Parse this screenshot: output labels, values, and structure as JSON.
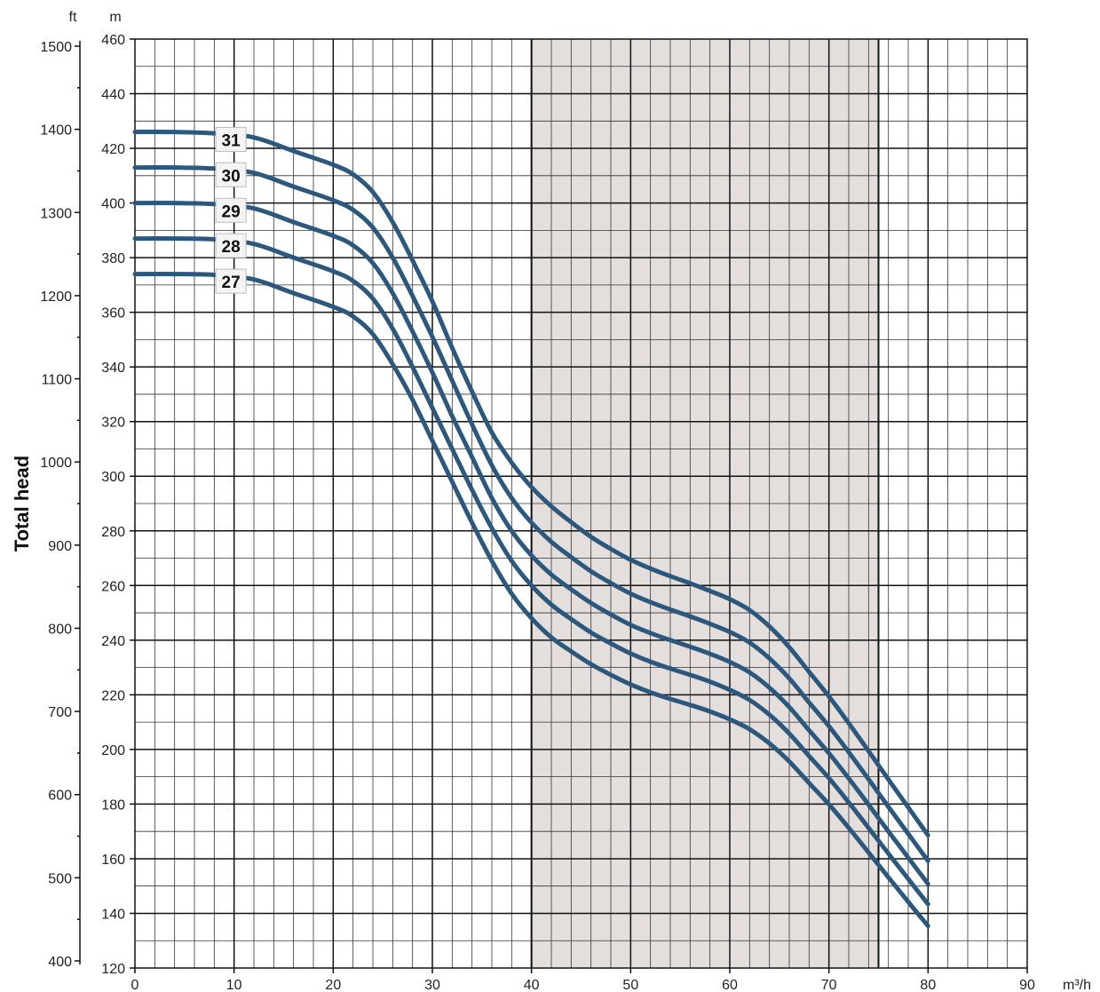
{
  "chart_data": {
    "type": "line",
    "ylabel": "Total head",
    "y_unit_left": "ft",
    "y_unit_right": "m",
    "x_unit": "m³/h",
    "xlim": [
      0,
      90
    ],
    "ylim_m": [
      120,
      460
    ],
    "ylim_ft": [
      400,
      1500
    ],
    "x_ticks": [
      "0",
      "10",
      "20",
      "30",
      "40",
      "50",
      "60",
      "70",
      "80",
      "90"
    ],
    "y_ticks_m": [
      "120",
      "140",
      "160",
      "180",
      "200",
      "220",
      "240",
      "260",
      "280",
      "300",
      "320",
      "340",
      "360",
      "380",
      "400",
      "420",
      "440",
      "460"
    ],
    "y_ticks_ft": [
      "400",
      "500",
      "600",
      "700",
      "800",
      "900",
      "1000",
      "1100",
      "1200",
      "1300",
      "1400",
      "1500"
    ],
    "shaded_region_x": [
      40,
      75
    ],
    "grid": true,
    "curve_color": "#2d587d",
    "shade_color": "#e4dedd",
    "x": [
      0,
      4,
      8,
      12,
      16,
      20,
      22,
      24,
      26,
      28,
      30,
      32,
      34,
      36,
      38,
      40,
      42,
      44,
      46,
      48,
      50,
      52,
      54,
      56,
      58,
      60,
      62,
      64,
      66,
      68,
      70,
      72,
      74,
      76,
      78,
      80
    ],
    "series": [
      {
        "name": "31",
        "values": [
          426,
          426,
          425.5,
          424,
          419,
          414,
          410.5,
          404,
          393,
          379,
          364,
          347,
          331,
          316,
          305,
          296,
          289,
          283.2,
          277.8,
          273.4,
          269.4,
          266.2,
          263.4,
          260.8,
          258,
          255,
          251,
          245,
          237.4,
          228.4,
          219.4,
          209.6,
          199.4,
          189,
          178.8,
          168.6
        ]
      },
      {
        "name": "30",
        "values": [
          413,
          413,
          412.6,
          411,
          406,
          401,
          397.5,
          391,
          380,
          366,
          351,
          335,
          319,
          304,
          292,
          283,
          276,
          270.4,
          265.2,
          260.9,
          257,
          253.9,
          251.2,
          248.7,
          246,
          243,
          239.1,
          233.3,
          226,
          217.2,
          208.5,
          199,
          189.1,
          179,
          169.1,
          159.2
        ]
      },
      {
        "name": "29",
        "values": [
          400,
          400,
          399.6,
          398,
          393,
          388,
          384.5,
          378,
          367,
          353,
          338,
          322,
          307,
          292,
          280,
          271,
          264,
          258.6,
          253.6,
          249.4,
          245.6,
          242.6,
          240,
          237.6,
          235,
          232,
          228.2,
          222.6,
          215.5,
          207,
          198.6,
          189.4,
          179.8,
          170,
          160.4,
          150.8
        ]
      },
      {
        "name": "28",
        "values": [
          387,
          387,
          386.7,
          385,
          380,
          375,
          371.5,
          365,
          354,
          340,
          325,
          310,
          295,
          281,
          269,
          260,
          253,
          247.7,
          242.8,
          238.8,
          235.1,
          232.1,
          229.6,
          227.3,
          224.8,
          221.8,
          218.1,
          212.7,
          205.8,
          197.6,
          189.5,
          180.6,
          171.3,
          161.9,
          152.6,
          143.4
        ]
      },
      {
        "name": "27",
        "values": [
          374,
          374,
          373.7,
          372,
          367,
          362,
          358.5,
          352,
          341,
          328,
          313,
          298,
          283,
          269,
          257,
          248,
          241,
          235.9,
          231.2,
          227.3,
          223.8,
          220.9,
          218.5,
          216.3,
          213.9,
          211,
          207.4,
          202.2,
          195.6,
          187.7,
          179.9,
          171.3,
          162.3,
          153.2,
          144.2,
          135.4
        ]
      }
    ]
  }
}
